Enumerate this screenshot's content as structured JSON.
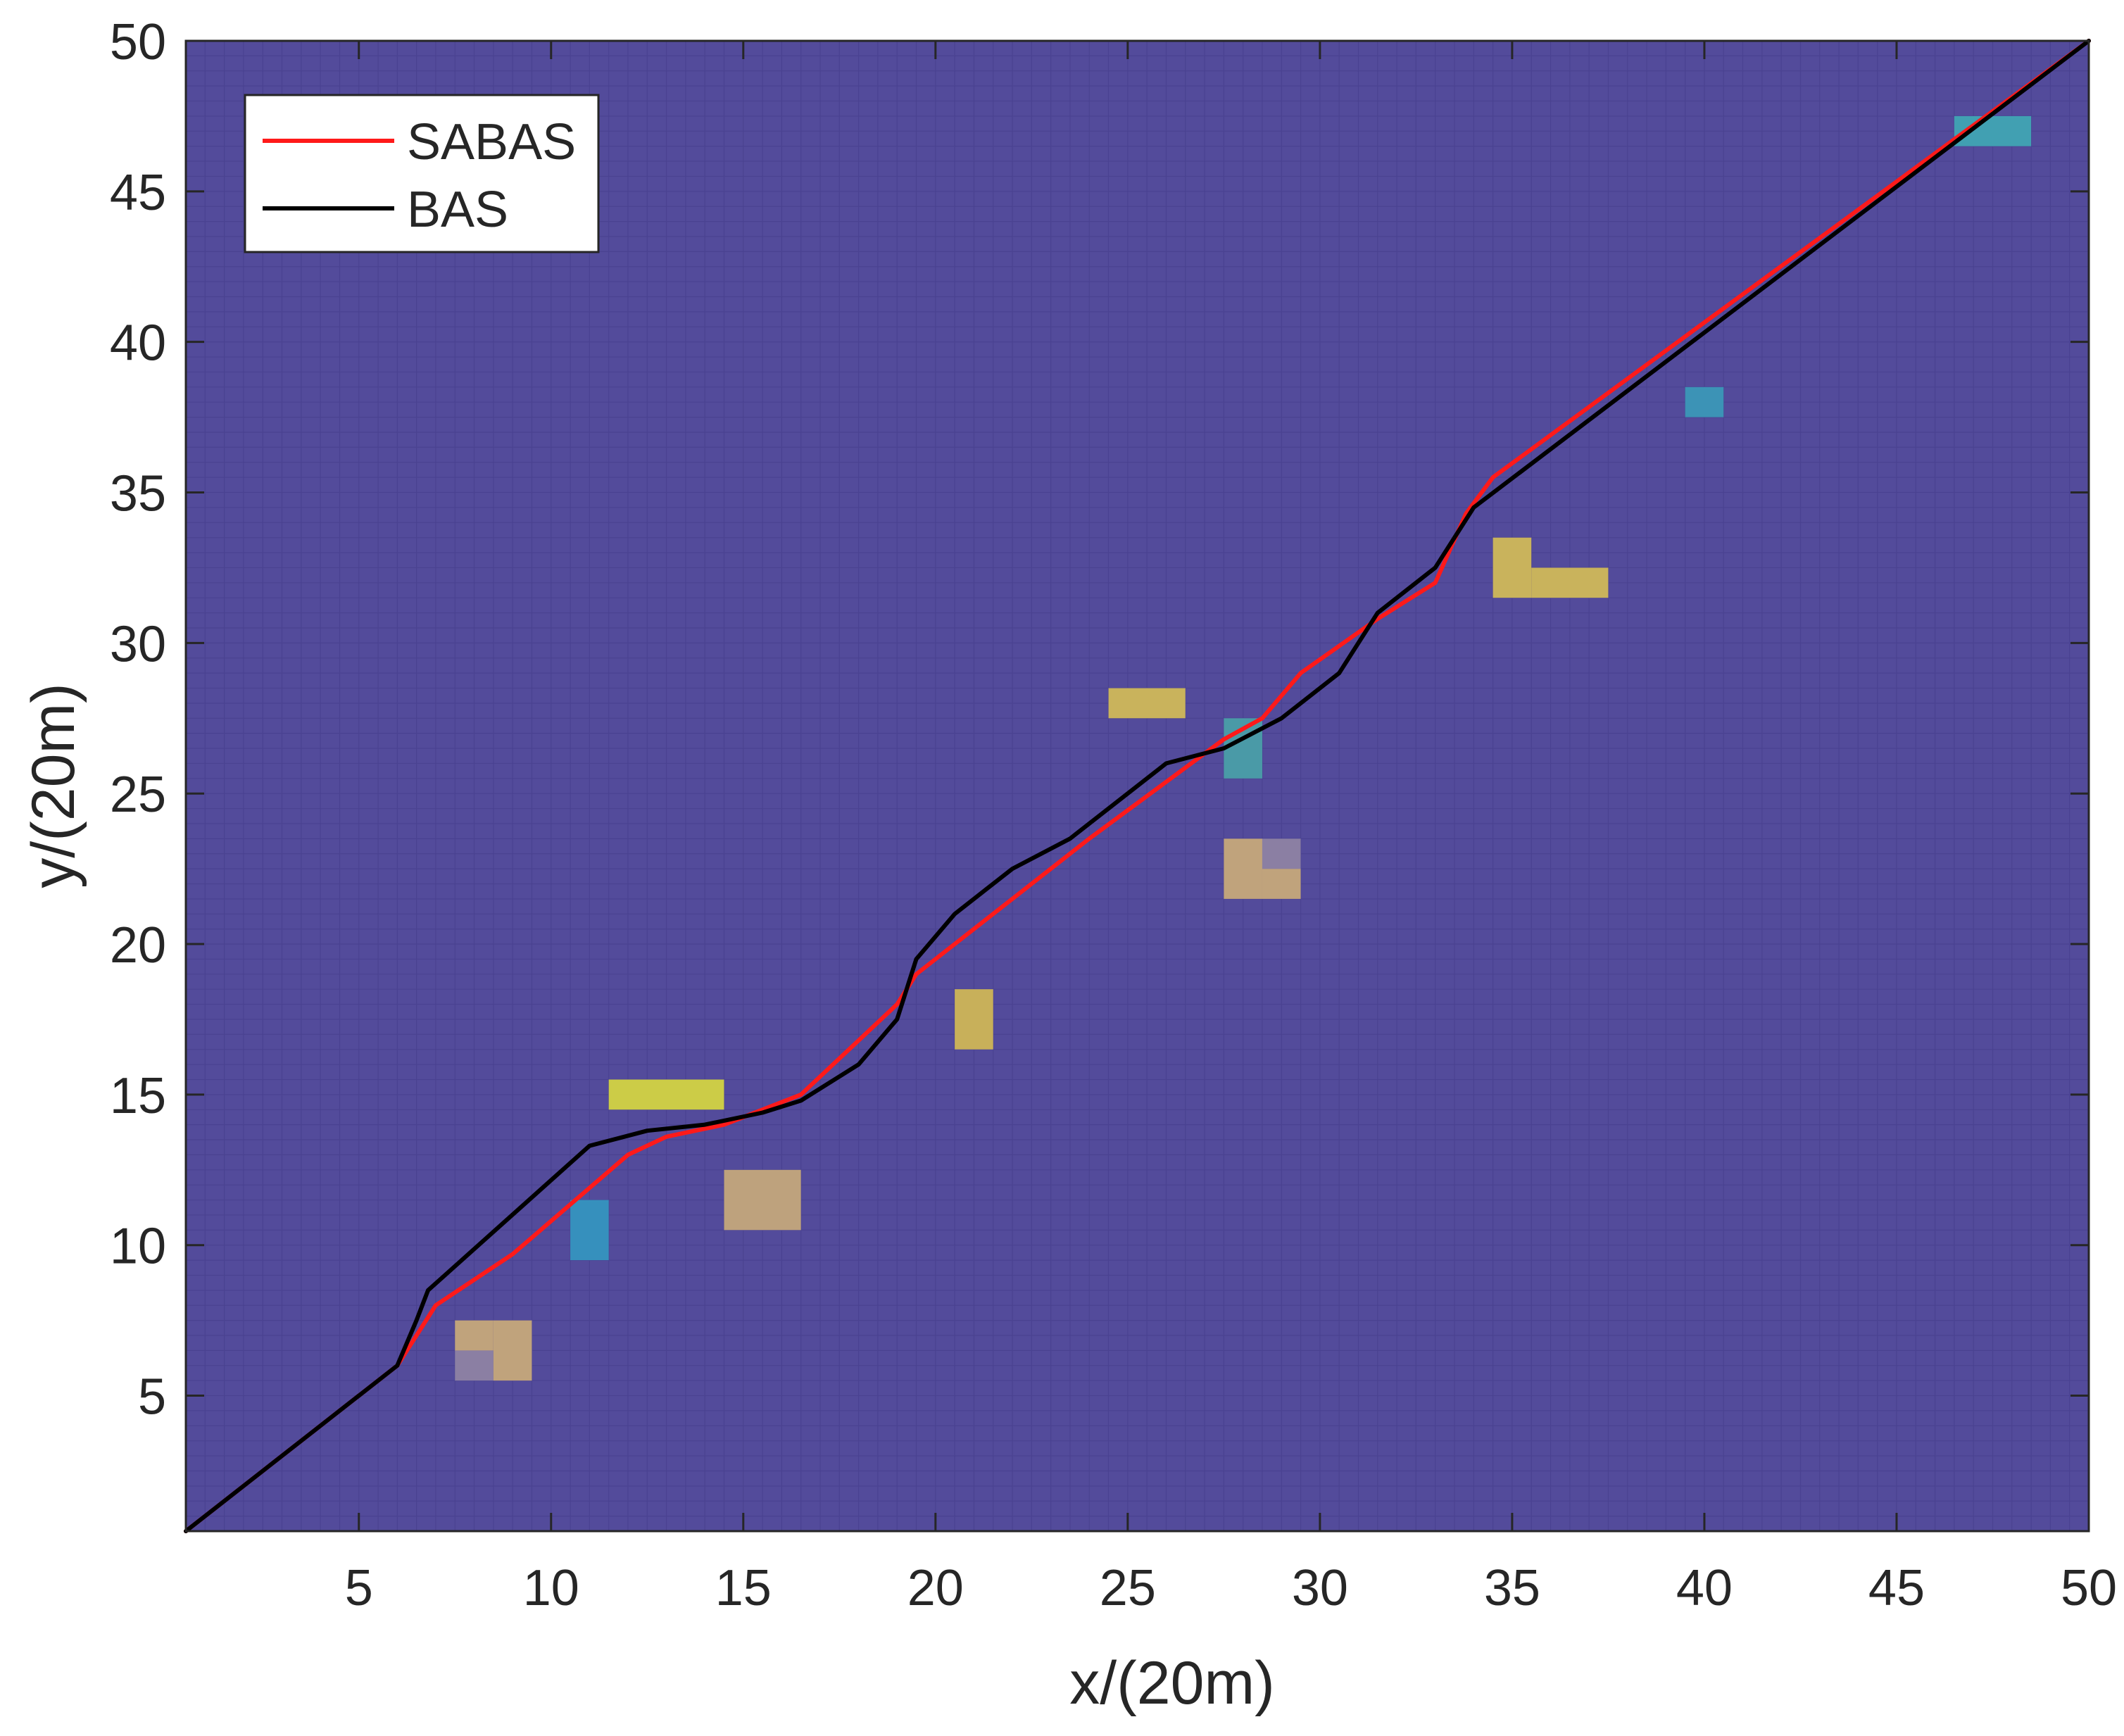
{
  "chart_data": {
    "type": "line",
    "title": "",
    "xlabel": "x/(20m)",
    "ylabel": "y/(20m)",
    "xlim": [
      0.5,
      50
    ],
    "ylim": [
      0.5,
      50
    ],
    "xticks": [
      5,
      10,
      15,
      20,
      25,
      30,
      35,
      40,
      45,
      50
    ],
    "yticks": [
      5,
      10,
      15,
      20,
      25,
      30,
      35,
      40,
      45,
      50
    ],
    "xtick_labels": [
      "5",
      "10",
      "15",
      "20",
      "25",
      "30",
      "35",
      "40",
      "45",
      "50"
    ],
    "ytick_labels": [
      "5",
      "10",
      "15",
      "20",
      "25",
      "30",
      "35",
      "40",
      "45",
      "50"
    ],
    "grid": true,
    "legend_position": "top-left",
    "background_color": "#534b9b",
    "grid_color": "#4a4291",
    "series": [
      {
        "name": "SABAS",
        "color": "#ff1a1a",
        "points": [
          [
            0.5,
            0.5
          ],
          [
            6,
            6
          ],
          [
            7,
            8
          ],
          [
            9,
            9.7
          ],
          [
            12,
            13
          ],
          [
            13,
            13.6
          ],
          [
            14.5,
            14
          ],
          [
            16.5,
            15
          ],
          [
            19,
            18
          ],
          [
            19.5,
            19
          ],
          [
            24,
            23.5
          ],
          [
            27.5,
            26.8
          ],
          [
            28.5,
            27.5
          ],
          [
            29.5,
            29
          ],
          [
            31.5,
            30.8
          ],
          [
            33,
            32
          ],
          [
            33.8,
            34.3
          ],
          [
            34.5,
            35.5
          ],
          [
            50,
            50
          ]
        ]
      },
      {
        "name": "BAS",
        "color": "#000000",
        "points": [
          [
            0.5,
            0.5
          ],
          [
            6,
            6
          ],
          [
            6.5,
            7.5
          ],
          [
            6.8,
            8.5
          ],
          [
            11,
            13.3
          ],
          [
            12.5,
            13.8
          ],
          [
            14,
            14
          ],
          [
            15.5,
            14.4
          ],
          [
            16.5,
            14.8
          ],
          [
            18,
            16
          ],
          [
            19,
            17.5
          ],
          [
            19.5,
            19.5
          ],
          [
            20.5,
            21
          ],
          [
            22,
            22.5
          ],
          [
            23.5,
            23.5
          ],
          [
            26,
            26
          ],
          [
            27.5,
            26.5
          ],
          [
            29,
            27.5
          ],
          [
            30.5,
            29
          ],
          [
            31.5,
            31
          ],
          [
            33,
            32.5
          ],
          [
            34,
            34.5
          ],
          [
            50,
            50
          ]
        ]
      }
    ],
    "obstacles": [
      {
        "x": 7.5,
        "y": 5.5,
        "w": 1,
        "h": 1,
        "color": "#8b7fa3"
      },
      {
        "x": 7.5,
        "y": 6.5,
        "w": 1,
        "h": 1,
        "color": "#c0a37c"
      },
      {
        "x": 8.5,
        "y": 5.5,
        "w": 1,
        "h": 2,
        "color": "#c0a37c"
      },
      {
        "x": 10.5,
        "y": 9.5,
        "w": 1,
        "h": 2,
        "color": "#3690bd"
      },
      {
        "x": 11.5,
        "y": 14.5,
        "w": 3,
        "h": 1,
        "color": "#cccc47"
      },
      {
        "x": 14.5,
        "y": 10.5,
        "w": 2,
        "h": 2,
        "color": "#bea27d"
      },
      {
        "x": 20.5,
        "y": 16.5,
        "w": 1,
        "h": 2,
        "color": "#c8b05a"
      },
      {
        "x": 24.5,
        "y": 27.5,
        "w": 2,
        "h": 1,
        "color": "#c9b35c"
      },
      {
        "x": 27.5,
        "y": 25.5,
        "w": 1,
        "h": 2,
        "color": "#4a9aa7"
      },
      {
        "x": 27.5,
        "y": 21.5,
        "w": 1,
        "h": 2,
        "color": "#c0a37c"
      },
      {
        "x": 28.5,
        "y": 21.5,
        "w": 1,
        "h": 1,
        "color": "#c0a37c"
      },
      {
        "x": 28.5,
        "y": 22.5,
        "w": 1,
        "h": 1,
        "color": "#8b7fa3"
      },
      {
        "x": 34.5,
        "y": 31.5,
        "w": 1,
        "h": 2,
        "color": "#c9b35c"
      },
      {
        "x": 35.5,
        "y": 31.5,
        "w": 2,
        "h": 1,
        "color": "#c9b35c"
      },
      {
        "x": 39.5,
        "y": 37.5,
        "w": 1,
        "h": 1,
        "color": "#3c93b6"
      },
      {
        "x": 46.5,
        "y": 46.5,
        "w": 2,
        "h": 1,
        "color": "#41a0b2"
      }
    ]
  }
}
